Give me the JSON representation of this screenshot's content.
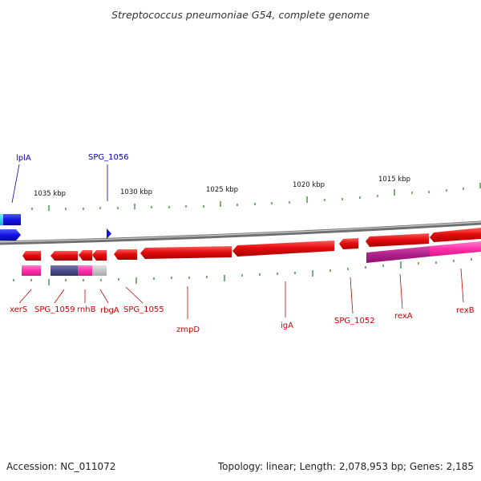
{
  "title": "Streptococcus pneumoniae G54, complete genome",
  "footer": {
    "accession": "Accession: NC_011072",
    "summary": "Topology: linear; Length: 2,078,953 bp; Genes: 2,185"
  },
  "kbp_labels": [
    "1035 kbp",
    "1030 kbp",
    "1025 kbp",
    "1020 kbp",
    "1015 kbp"
  ],
  "colors": {
    "forward_strand": "#1414e6",
    "reverse_strand": "#e60f0f",
    "reverse_label": "#cc0000",
    "forward_label": "#0000bb",
    "rna_or_feature": "#ff2fa8",
    "tick": "#1e7a1e",
    "backbone": "#888888"
  },
  "forward_genes": [
    {
      "label": "lplA"
    },
    {
      "label": "SPG_1056"
    }
  ],
  "reverse_genes": [
    {
      "label": "xerS"
    },
    {
      "label": "SPG_1059"
    },
    {
      "label": "rnhB"
    },
    {
      "label": "rbgA"
    },
    {
      "label": "SPG_1055"
    },
    {
      "label": "zmpD"
    },
    {
      "label": "igA"
    },
    {
      "label": "SPG_1052"
    },
    {
      "label": "rexA"
    },
    {
      "label": "rexB"
    }
  ]
}
